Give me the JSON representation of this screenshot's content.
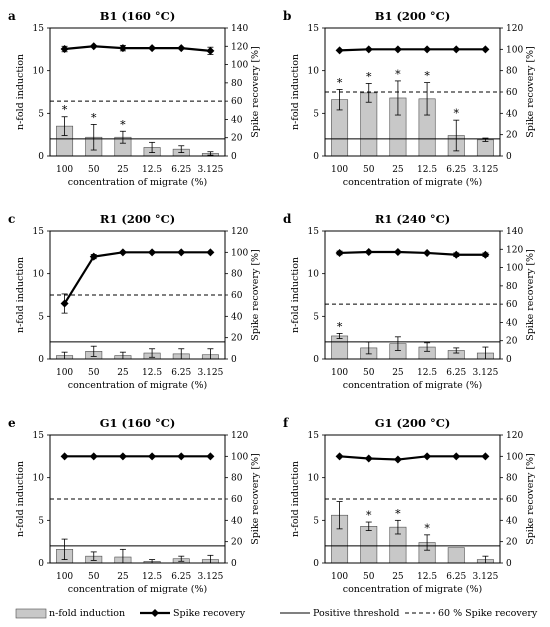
{
  "chart_data": [
    {
      "type": "bar",
      "letter": "a",
      "title": "B1 (160 °C)",
      "categories": [
        "100",
        "50",
        "25",
        "12.5",
        "6.25",
        "3.125"
      ],
      "xlabel": "concentration of migrate (%)",
      "ylabel": "n-fold induction",
      "y2label": "Spike recovery [%]",
      "ylim": [
        0,
        15
      ],
      "y_ticks": [
        0,
        5,
        10,
        15
      ],
      "y2lim": [
        0,
        140
      ],
      "y2_ticks": [
        0,
        20,
        40,
        60,
        80,
        100,
        120,
        140
      ],
      "series": [
        {
          "name": "n-fold induction",
          "values": [
            3.5,
            2.2,
            2.2,
            1.0,
            0.8,
            0.3
          ],
          "errors": [
            1.1,
            1.5,
            0.7,
            0.6,
            0.4,
            0.2
          ],
          "significant": [
            true,
            true,
            true,
            false,
            false,
            false
          ]
        },
        {
          "name": "Spike recovery",
          "values": [
            117,
            120,
            118,
            118,
            118,
            115
          ],
          "errors": [
            3,
            1,
            3,
            1,
            1,
            4
          ]
        }
      ],
      "positive_threshold": 2,
      "spike_recovery_threshold": 60
    },
    {
      "type": "bar",
      "letter": "b",
      "title": "B1 (200 °C)",
      "categories": [
        "100",
        "50",
        "25",
        "12.5",
        "6.25",
        "3.125"
      ],
      "xlabel": "concentration of migrate (%)",
      "ylabel": "n-fold induction",
      "y2label": "Spike recovery [%]",
      "ylim": [
        0,
        15
      ],
      "y_ticks": [
        0,
        5,
        10,
        15
      ],
      "y2lim": [
        0,
        120
      ],
      "y2_ticks": [
        0,
        20,
        40,
        60,
        80,
        100,
        120
      ],
      "series": [
        {
          "name": "n-fold induction",
          "values": [
            6.6,
            7.4,
            6.8,
            6.7,
            2.4,
            1.9
          ],
          "errors": [
            1.2,
            1.1,
            2.0,
            1.9,
            1.8,
            0.2
          ],
          "significant": [
            true,
            true,
            true,
            true,
            true,
            false
          ]
        },
        {
          "name": "Spike recovery",
          "values": [
            99,
            100,
            100,
            100,
            100,
            100
          ],
          "errors": [
            1,
            1,
            1,
            1,
            1,
            1
          ]
        }
      ],
      "positive_threshold": 2,
      "spike_recovery_threshold": 60
    },
    {
      "type": "bar",
      "letter": "c",
      "title": "R1 (200 °C)",
      "categories": [
        "100",
        "50",
        "25",
        "12.5",
        "6.25",
        "3.125"
      ],
      "xlabel": "concentration of migrate (%)",
      "ylabel": "n-fold induction",
      "y2label": "Spike recovery [%]",
      "ylim": [
        0,
        15
      ],
      "y_ticks": [
        0,
        5,
        10,
        15
      ],
      "y2lim": [
        0,
        120
      ],
      "y2_ticks": [
        0,
        20,
        40,
        60,
        80,
        100,
        120
      ],
      "series": [
        {
          "name": "n-fold induction",
          "values": [
            0.4,
            0.9,
            0.4,
            0.7,
            0.6,
            0.5
          ],
          "errors": [
            0.4,
            0.6,
            0.4,
            0.5,
            0.6,
            0.7
          ],
          "significant": [
            false,
            false,
            false,
            false,
            false,
            false
          ]
        },
        {
          "name": "Spike recovery",
          "values": [
            52,
            96,
            100,
            100,
            100,
            100
          ],
          "errors": [
            9,
            2,
            1,
            1,
            1,
            1
          ]
        }
      ],
      "positive_threshold": 2,
      "spike_recovery_threshold": 60
    },
    {
      "type": "bar",
      "letter": "d",
      "title": "R1 (240 °C)",
      "categories": [
        "100",
        "50",
        "25",
        "12.5",
        "6.25",
        "3.125"
      ],
      "xlabel": "concentration of migrate (%)",
      "ylabel": "n-fold induction",
      "y2label": "Spike recovery [%]",
      "ylim": [
        0,
        15
      ],
      "y_ticks": [
        0,
        5,
        10,
        15
      ],
      "y2lim": [
        0,
        140
      ],
      "y2_ticks": [
        0,
        20,
        40,
        60,
        80,
        100,
        120,
        140
      ],
      "series": [
        {
          "name": "n-fold induction",
          "values": [
            2.7,
            1.3,
            1.8,
            1.4,
            1.0,
            0.7
          ],
          "errors": [
            0.3,
            0.7,
            0.8,
            0.5,
            0.3,
            0.7
          ],
          "significant": [
            true,
            false,
            false,
            false,
            false,
            false
          ]
        },
        {
          "name": "Spike recovery",
          "values": [
            116,
            117,
            117,
            116,
            114,
            114
          ],
          "errors": [
            2,
            1,
            1,
            1,
            2,
            2
          ]
        }
      ],
      "positive_threshold": 2,
      "spike_recovery_threshold": 60
    },
    {
      "type": "bar",
      "letter": "e",
      "title": "G1 (160 °C)",
      "categories": [
        "100",
        "50",
        "25",
        "12.5",
        "6.25",
        "3.125"
      ],
      "xlabel": "concentration of migrate (%)",
      "ylabel": "n-fold induction",
      "y2label": "Spike recovery [%]",
      "ylim": [
        0,
        15
      ],
      "y_ticks": [
        0,
        5,
        10,
        15
      ],
      "y2lim": [
        0,
        120
      ],
      "y2_ticks": [
        0,
        20,
        40,
        60,
        80,
        100,
        120
      ],
      "series": [
        {
          "name": "n-fold induction",
          "values": [
            1.6,
            0.8,
            0.7,
            0.2,
            0.5,
            0.4
          ],
          "errors": [
            1.2,
            0.5,
            0.9,
            0.2,
            0.3,
            0.5
          ],
          "significant": [
            false,
            false,
            false,
            false,
            false,
            false
          ]
        },
        {
          "name": "Spike recovery",
          "values": [
            100,
            100,
            100,
            100,
            100,
            100
          ],
          "errors": [
            1,
            1,
            1,
            1,
            1,
            1
          ]
        }
      ],
      "positive_threshold": 2,
      "spike_recovery_threshold": 60
    },
    {
      "type": "bar",
      "letter": "f",
      "title": "G1 (200 °C)",
      "categories": [
        "100",
        "50",
        "25",
        "12.5",
        "6.25",
        "3.125"
      ],
      "xlabel": "concentration of migrate (%)",
      "ylabel": "n-fold induction",
      "y2label": "Spike recovery [%]",
      "ylim": [
        0,
        15
      ],
      "y_ticks": [
        0,
        5,
        10,
        15
      ],
      "y2lim": [
        0,
        120
      ],
      "y2_ticks": [
        0,
        20,
        40,
        60,
        80,
        100,
        120
      ],
      "series": [
        {
          "name": "n-fold induction",
          "values": [
            5.6,
            4.3,
            4.2,
            2.4,
            1.8,
            0.4
          ],
          "errors": [
            1.6,
            0.5,
            0.8,
            0.9,
            0.0,
            0.4
          ],
          "significant": [
            false,
            true,
            true,
            true,
            false,
            false
          ]
        },
        {
          "name": "Spike recovery",
          "values": [
            100,
            98,
            97,
            100,
            100,
            100
          ],
          "errors": [
            1,
            1,
            1,
            1,
            1,
            1
          ]
        }
      ],
      "positive_threshold": 2,
      "spike_recovery_threshold": 60
    }
  ],
  "legend": {
    "items": [
      {
        "label": "n-fold induction",
        "kind": "bar"
      },
      {
        "label": "Spike recovery",
        "kind": "line-marker"
      },
      {
        "label": "Positive threshold",
        "kind": "solid-line"
      },
      {
        "label": "60 % Spike recovery",
        "kind": "dashed-line"
      }
    ]
  },
  "significance_marker": "*",
  "colors": {
    "bar_fill": "#c8c8c8",
    "bar_edge": "#4d4d4d",
    "line": "#000000",
    "text": "#000000"
  }
}
